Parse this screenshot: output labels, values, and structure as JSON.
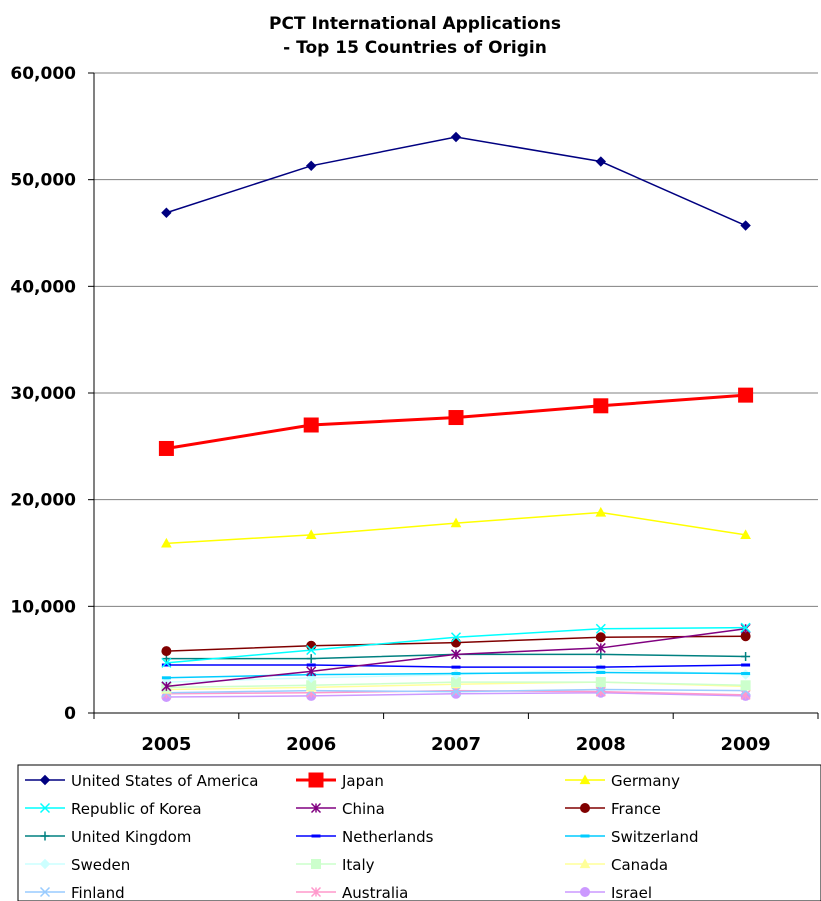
{
  "chart_data": {
    "type": "line",
    "title": "PCT International Applications",
    "subtitle": "- Top 15 Countries of Origin",
    "xlabel": "",
    "ylabel": "",
    "categories": [
      "2005",
      "2006",
      "2007",
      "2008",
      "2009"
    ],
    "ylim": [
      0,
      60000
    ],
    "yticks": [
      0,
      10000,
      20000,
      30000,
      40000,
      50000,
      60000
    ],
    "ytick_labels": [
      "0",
      "10,000",
      "20,000",
      "30,000",
      "40,000",
      "50,000",
      "60,000"
    ],
    "grid": "horizontal",
    "legend_position": "bottom",
    "series": [
      {
        "name": "United States of America",
        "values": [
          46900,
          51300,
          54000,
          51700,
          45700
        ],
        "color": "#000080",
        "marker": "diamond"
      },
      {
        "name": "Japan",
        "values": [
          24800,
          27000,
          27700,
          28800,
          29800
        ],
        "color": "#ff0000",
        "marker": "square"
      },
      {
        "name": "Germany",
        "values": [
          15900,
          16700,
          17800,
          18800,
          16700
        ],
        "color": "#ffff00",
        "marker": "triangle"
      },
      {
        "name": "Republic of Korea",
        "values": [
          4700,
          5900,
          7100,
          7900,
          8000
        ],
        "color": "#00ffff",
        "marker": "x"
      },
      {
        "name": "China",
        "values": [
          2500,
          3900,
          5500,
          6100,
          7900
        ],
        "color": "#800080",
        "marker": "star"
      },
      {
        "name": "France",
        "values": [
          5800,
          6300,
          6600,
          7100,
          7200
        ],
        "color": "#800000",
        "marker": "circle"
      },
      {
        "name": "United Kingdom",
        "values": [
          5100,
          5100,
          5500,
          5500,
          5300
        ],
        "color": "#008080",
        "marker": "plus"
      },
      {
        "name": "Netherlands",
        "values": [
          4500,
          4500,
          4300,
          4300,
          4500
        ],
        "color": "#0000ff",
        "marker": "dash"
      },
      {
        "name": "Switzerland",
        "values": [
          3300,
          3600,
          3700,
          3800,
          3700
        ],
        "color": "#00ccff",
        "marker": "dash"
      },
      {
        "name": "Sweden",
        "values": [
          2900,
          3300,
          3600,
          4100,
          3600
        ],
        "color": "#ccffff",
        "marker": "diamond"
      },
      {
        "name": "Italy",
        "values": [
          2400,
          2600,
          2900,
          2900,
          2600
        ],
        "color": "#ccffcc",
        "marker": "square"
      },
      {
        "name": "Canada",
        "values": [
          2200,
          2400,
          2700,
          2900,
          2500
        ],
        "color": "#ffff99",
        "marker": "triangle"
      },
      {
        "name": "Finland",
        "values": [
          1900,
          2100,
          2000,
          2200,
          2100
        ],
        "color": "#99ccff",
        "marker": "x"
      },
      {
        "name": "Australia",
        "values": [
          1800,
          1900,
          2100,
          2000,
          1700
        ],
        "color": "#ff99cc",
        "marker": "star"
      },
      {
        "name": "Israel",
        "values": [
          1500,
          1600,
          1800,
          1900,
          1600
        ],
        "color": "#cc99ff",
        "marker": "circle"
      }
    ]
  }
}
